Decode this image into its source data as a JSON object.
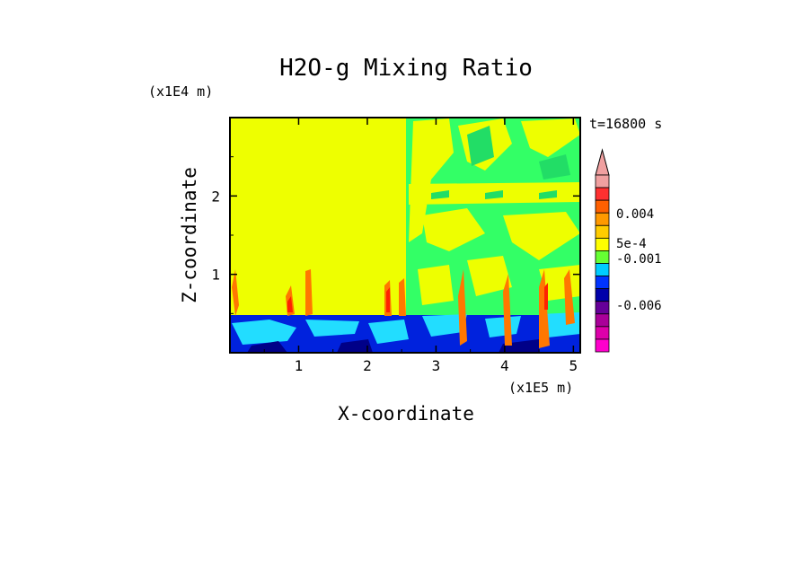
{
  "chart_data": {
    "type": "heatmap",
    "title": "H2O-g Mixing Ratio",
    "xlabel": "X-coordinate",
    "ylabel": "Z-coordinate",
    "x_unit": "(x1E5 m)",
    "y_unit": "(x1E4 m)",
    "time_label": "t=16800 s",
    "xlim": [
      0,
      5.1
    ],
    "ylim": [
      0,
      3.0
    ],
    "x_ticks": [
      1,
      2,
      3,
      4,
      5
    ],
    "y_ticks": [
      1,
      2
    ],
    "x_tick_labels": [
      "1",
      "2",
      "3",
      "4",
      "5"
    ],
    "y_tick_labels": [
      "1",
      "2"
    ],
    "colorbar": {
      "colors": [
        "#f0a0a0",
        "#ff3030",
        "#ff6000",
        "#ff9900",
        "#ffcc00",
        "#ffff00",
        "#66ff33",
        "#00ccff",
        "#0033ff",
        "#0000aa",
        "#660099",
        "#aa0099",
        "#dd00aa",
        "#ff00cc"
      ],
      "tick_labels": [
        "0.004",
        "5e-4",
        "-0.001",
        "-0.006"
      ],
      "extend": "max"
    },
    "regions": [
      {
        "name": "upper-left uniform",
        "x": [
          0,
          2.55
        ],
        "z": [
          0.5,
          3.0
        ],
        "level": "near 0 (yellow)"
      },
      {
        "name": "upper-right turbulent",
        "x": [
          2.55,
          5.1
        ],
        "z": [
          0.5,
          3.0
        ],
        "level": "mixed green/yellow"
      },
      {
        "name": "boundary layer",
        "x": [
          0,
          5.1
        ],
        "z": [
          0,
          0.5
        ],
        "level": "negative (blue/cyan)"
      }
    ]
  }
}
